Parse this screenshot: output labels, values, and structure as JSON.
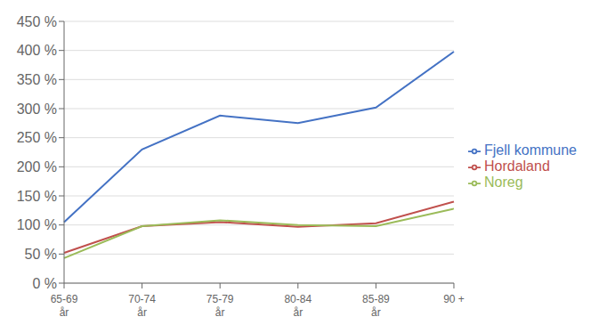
{
  "chart_data": {
    "type": "line",
    "categories": [
      "65-69\når",
      "70-74\når",
      "75-79\når",
      "80-84\når",
      "85-89\når",
      "90 +"
    ],
    "series": [
      {
        "name": "Fjell kommune",
        "color": "#4472C4",
        "values": [
          105,
          230,
          288,
          275,
          302,
          398
        ]
      },
      {
        "name": "Hordaland",
        "color": "#C0504D",
        "values": [
          52,
          98,
          105,
          97,
          103,
          140
        ]
      },
      {
        "name": "Noreg",
        "color": "#9BBB59",
        "values": [
          43,
          98,
          108,
          100,
          98,
          128
        ]
      }
    ],
    "ylim": [
      0,
      450
    ],
    "yticks": [
      {
        "value": 0,
        "label": "0 %"
      },
      {
        "value": 50,
        "label": "50 %"
      },
      {
        "value": 100,
        "label": "100 %"
      },
      {
        "value": 150,
        "label": "150 %"
      },
      {
        "value": 200,
        "label": "200 %"
      },
      {
        "value": 250,
        "label": "250 %"
      },
      {
        "value": 300,
        "label": "300 %"
      },
      {
        "value": 350,
        "label": "350 %"
      },
      {
        "value": 400,
        "label": "400 %"
      },
      {
        "value": 450,
        "label": "450 %"
      }
    ],
    "grid": true,
    "legend": "right"
  }
}
